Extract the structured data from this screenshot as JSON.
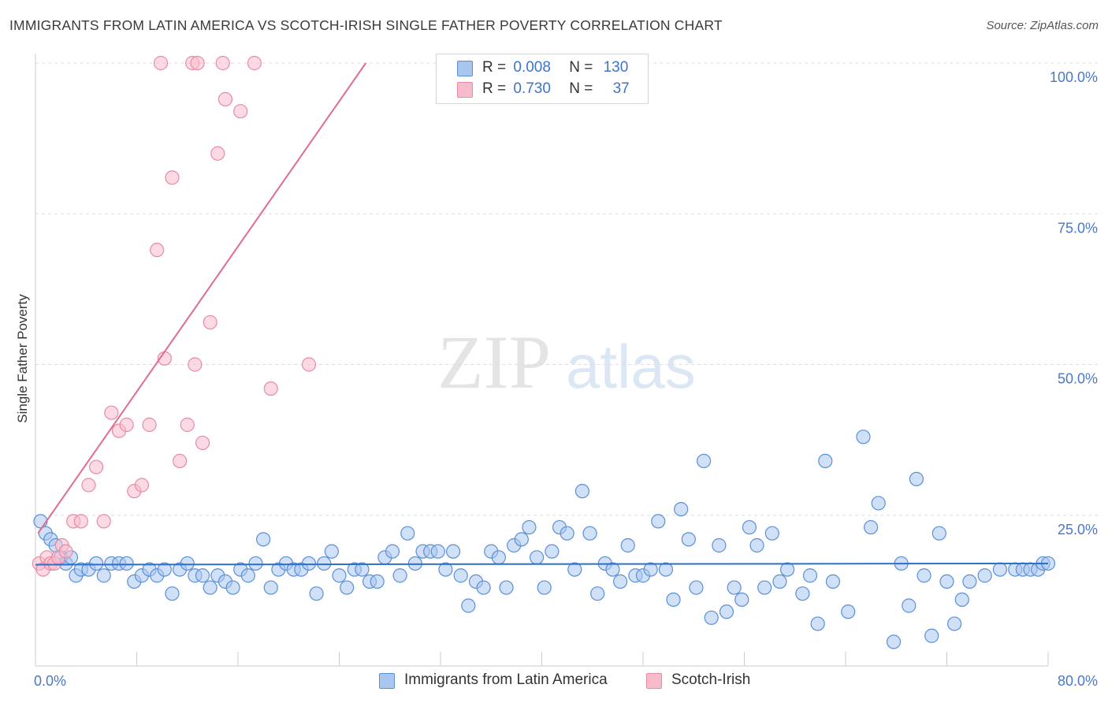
{
  "header": {
    "title": "IMMIGRANTS FROM LATIN AMERICA VS SCOTCH-IRISH SINGLE FATHER POVERTY CORRELATION CHART",
    "source": "Source: ZipAtlas.com"
  },
  "colors": {
    "blue_fill": "#a9c6ef",
    "blue_stroke": "#5b8fd6",
    "blue_line": "#2f6fc9",
    "pink_fill": "#f7bccc",
    "pink_stroke": "#e88aa5",
    "pink_line": "#e06b93",
    "grid": "#dddddd",
    "tick_text": "#4a78c8"
  },
  "legend": {
    "rows": [
      {
        "r_label": "R =",
        "r_value": "0.008",
        "n_label": "N =",
        "n_value": "130"
      },
      {
        "r_label": "R =",
        "r_value": "0.730",
        "n_label": "N =",
        "n_value": "37"
      }
    ]
  },
  "bottom_legend": {
    "items": [
      "Immigrants from Latin America",
      "Scotch-Irish"
    ]
  },
  "watermark": {
    "part1": "ZIP",
    "part2": "atlas"
  },
  "chart_data": {
    "type": "scatter",
    "title": "IMMIGRANTS FROM LATIN AMERICA VS SCOTCH-IRISH SINGLE FATHER POVERTY CORRELATION CHART",
    "xlabel": "",
    "ylabel": "Single Father Poverty",
    "xlim": [
      0,
      80
    ],
    "ylim": [
      0,
      100
    ],
    "x_tick_labels": [
      "0.0%",
      "80.0%"
    ],
    "y_tick_labels": [
      "25.0%",
      "50.0%",
      "75.0%",
      "100.0%"
    ],
    "y_ticks": [
      25,
      50,
      75,
      100
    ],
    "grid": "horizontal dashed",
    "legend_placement": "top-center",
    "series": [
      {
        "name": "Immigrants from Latin America",
        "r": 0.008,
        "n": 130,
        "trend": {
          "x": [
            0,
            80
          ],
          "y": [
            16.8,
            17.0
          ]
        },
        "points": [
          [
            0.4,
            24
          ],
          [
            0.8,
            22
          ],
          [
            1.2,
            21
          ],
          [
            1.6,
            20
          ],
          [
            2.0,
            18
          ],
          [
            2.4,
            17
          ],
          [
            2.8,
            18
          ],
          [
            3.2,
            15
          ],
          [
            3.6,
            16
          ],
          [
            4.2,
            16
          ],
          [
            4.8,
            17
          ],
          [
            5.4,
            15
          ],
          [
            6.0,
            17
          ],
          [
            6.6,
            17
          ],
          [
            7.2,
            17
          ],
          [
            7.8,
            14
          ],
          [
            8.4,
            15
          ],
          [
            9.0,
            16
          ],
          [
            9.6,
            15
          ],
          [
            10.2,
            16
          ],
          [
            10.8,
            12
          ],
          [
            11.4,
            16
          ],
          [
            12.0,
            17
          ],
          [
            12.6,
            15
          ],
          [
            13.2,
            15
          ],
          [
            13.8,
            13
          ],
          [
            14.4,
            15
          ],
          [
            15.0,
            14
          ],
          [
            15.6,
            13
          ],
          [
            16.2,
            16
          ],
          [
            16.8,
            15
          ],
          [
            17.4,
            17
          ],
          [
            18.0,
            21
          ],
          [
            18.6,
            13
          ],
          [
            19.2,
            16
          ],
          [
            19.8,
            17
          ],
          [
            20.4,
            16
          ],
          [
            21.0,
            16
          ],
          [
            21.6,
            17
          ],
          [
            22.2,
            12
          ],
          [
            22.8,
            17
          ],
          [
            23.4,
            19
          ],
          [
            24.0,
            15
          ],
          [
            24.6,
            13
          ],
          [
            25.2,
            16
          ],
          [
            25.8,
            16
          ],
          [
            26.4,
            14
          ],
          [
            27.0,
            14
          ],
          [
            27.6,
            18
          ],
          [
            28.2,
            19
          ],
          [
            28.8,
            15
          ],
          [
            29.4,
            22
          ],
          [
            30.0,
            17
          ],
          [
            30.6,
            19
          ],
          [
            31.2,
            19
          ],
          [
            31.8,
            19
          ],
          [
            32.4,
            16
          ],
          [
            33.0,
            19
          ],
          [
            33.6,
            15
          ],
          [
            34.2,
            10
          ],
          [
            34.8,
            14
          ],
          [
            35.4,
            13
          ],
          [
            36.0,
            19
          ],
          [
            36.6,
            18
          ],
          [
            37.2,
            13
          ],
          [
            37.8,
            20
          ],
          [
            38.4,
            21
          ],
          [
            39.0,
            23
          ],
          [
            39.6,
            18
          ],
          [
            40.2,
            13
          ],
          [
            40.8,
            19
          ],
          [
            41.4,
            23
          ],
          [
            42.0,
            22
          ],
          [
            42.6,
            16
          ],
          [
            43.2,
            29
          ],
          [
            43.8,
            22
          ],
          [
            44.4,
            12
          ],
          [
            45.0,
            17
          ],
          [
            45.6,
            16
          ],
          [
            46.2,
            14
          ],
          [
            46.8,
            20
          ],
          [
            47.4,
            15
          ],
          [
            48.0,
            15
          ],
          [
            48.6,
            16
          ],
          [
            49.2,
            24
          ],
          [
            49.8,
            16
          ],
          [
            50.4,
            11
          ],
          [
            51.0,
            26
          ],
          [
            51.6,
            21
          ],
          [
            52.2,
            13
          ],
          [
            52.8,
            34
          ],
          [
            53.4,
            8
          ],
          [
            54.0,
            20
          ],
          [
            54.6,
            9
          ],
          [
            55.2,
            13
          ],
          [
            55.8,
            11
          ],
          [
            56.4,
            23
          ],
          [
            57.0,
            20
          ],
          [
            57.6,
            13
          ],
          [
            58.2,
            22
          ],
          [
            58.8,
            14
          ],
          [
            59.4,
            16
          ],
          [
            60.6,
            12
          ],
          [
            61.2,
            15
          ],
          [
            61.8,
            7
          ],
          [
            62.4,
            34
          ],
          [
            63.0,
            14
          ],
          [
            64.2,
            9
          ],
          [
            65.4,
            38
          ],
          [
            66.0,
            23
          ],
          [
            66.6,
            27
          ],
          [
            67.8,
            4
          ],
          [
            68.4,
            17
          ],
          [
            69.0,
            10
          ],
          [
            69.6,
            31
          ],
          [
            70.2,
            15
          ],
          [
            70.8,
            5
          ],
          [
            71.4,
            22
          ],
          [
            72.0,
            14
          ],
          [
            72.6,
            7
          ],
          [
            73.2,
            11
          ],
          [
            73.8,
            14
          ],
          [
            75.0,
            15
          ],
          [
            76.2,
            16
          ],
          [
            77.4,
            16
          ],
          [
            78.0,
            16
          ],
          [
            78.6,
            16
          ],
          [
            79.2,
            16
          ],
          [
            79.6,
            17
          ],
          [
            80.0,
            17
          ]
        ]
      },
      {
        "name": "Scotch-Irish",
        "r": 0.73,
        "n": 37,
        "trend": {
          "x": [
            0.2,
            26.1
          ],
          "y": [
            22,
            100
          ]
        },
        "points": [
          [
            0.3,
            17
          ],
          [
            0.6,
            16
          ],
          [
            0.9,
            18
          ],
          [
            1.2,
            17
          ],
          [
            1.5,
            17
          ],
          [
            1.8,
            18
          ],
          [
            2.1,
            20
          ],
          [
            2.4,
            19
          ],
          [
            3.0,
            24
          ],
          [
            3.6,
            24
          ],
          [
            4.2,
            30
          ],
          [
            4.8,
            33
          ],
          [
            5.4,
            24
          ],
          [
            6.0,
            42
          ],
          [
            6.6,
            39
          ],
          [
            7.2,
            40
          ],
          [
            7.8,
            29
          ],
          [
            8.4,
            30
          ],
          [
            9.0,
            40
          ],
          [
            9.6,
            69
          ],
          [
            10.2,
            51
          ],
          [
            10.8,
            81
          ],
          [
            11.4,
            34
          ],
          [
            12.0,
            40
          ],
          [
            12.6,
            50
          ],
          [
            13.2,
            37
          ],
          [
            13.8,
            57
          ],
          [
            14.4,
            85
          ],
          [
            15.0,
            94
          ],
          [
            16.2,
            92
          ],
          [
            18.6,
            46
          ],
          [
            21.6,
            50
          ],
          [
            9.9,
            100
          ],
          [
            12.4,
            100
          ],
          [
            12.8,
            100
          ],
          [
            14.8,
            100
          ],
          [
            17.3,
            100
          ]
        ]
      }
    ]
  }
}
